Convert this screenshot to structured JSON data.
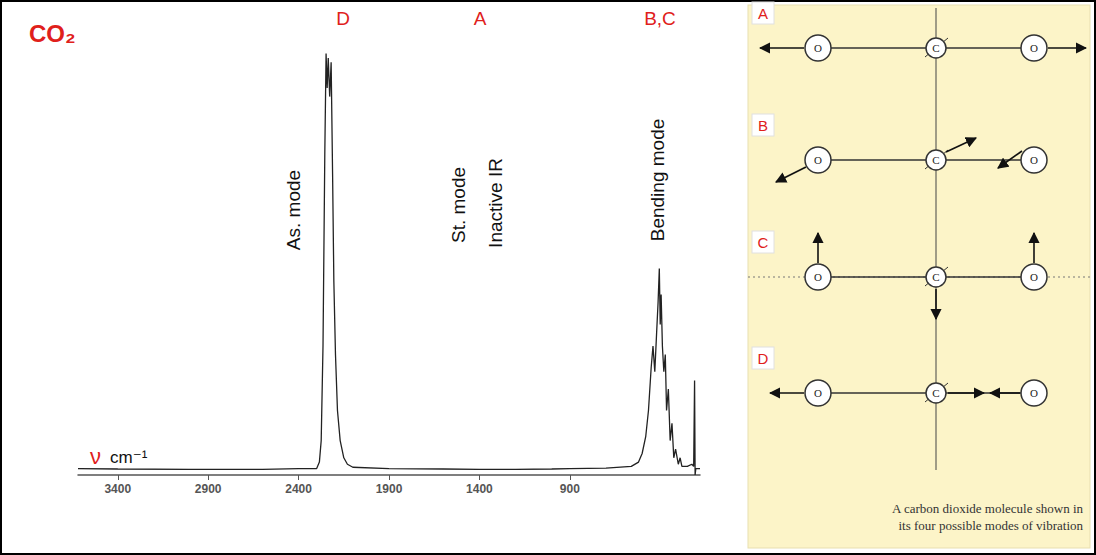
{
  "chart_data": {
    "type": "line",
    "title": "CO₂",
    "xlabel": "ν cm⁻¹",
    "x": [
      3620,
      3400,
      3000,
      2600,
      2400,
      2300,
      2285,
      2275,
      2265,
      2255,
      2248,
      2242,
      2236,
      2228,
      2220,
      2212,
      2205,
      2196,
      2185,
      2170,
      2150,
      2130,
      2100,
      1900,
      1600,
      1400,
      1200,
      1000,
      900,
      700,
      560,
      520,
      500,
      480,
      465,
      450,
      440,
      430,
      420,
      412,
      405,
      400,
      395,
      388,
      380,
      372,
      365,
      355,
      345,
      335,
      325,
      315,
      300,
      290,
      280,
      250,
      225,
      215,
      210,
      207,
      203,
      180
    ],
    "values": [
      1.5,
      1.4,
      1.3,
      1.3,
      1.5,
      1.5,
      3,
      8,
      30,
      75,
      98,
      90,
      97,
      88,
      96,
      70,
      45,
      28,
      15,
      8,
      4,
      2.5,
      1.8,
      1.5,
      1.4,
      1.3,
      1.3,
      1.4,
      1.5,
      1.6,
      2,
      3,
      5,
      9,
      15,
      25,
      30,
      24,
      33,
      40,
      48,
      35,
      42,
      30,
      24,
      28,
      15,
      20,
      8,
      12,
      4,
      6,
      2.5,
      4,
      2,
      2,
      2.5,
      2,
      22,
      0,
      1.5,
      1.5
    ],
    "color": "#222222",
    "xlim": [
      3620,
      180
    ],
    "xticks": [
      3400,
      2900,
      2400,
      1900,
      1400,
      900
    ],
    "ylim": [
      0,
      100
    ],
    "grid": false,
    "tick_labels": "x",
    "annotations": [
      "D",
      "A",
      "B,C",
      "As. mode",
      "St. mode",
      "Inactive IR",
      "Bending mode"
    ]
  },
  "diagram": {
    "modes": [
      "A",
      "B",
      "C",
      "D"
    ],
    "atoms": [
      "O",
      "C",
      "O"
    ],
    "caption": [
      "A carbon dioxide molecule shown in",
      "its four possible modes of vibration"
    ]
  }
}
